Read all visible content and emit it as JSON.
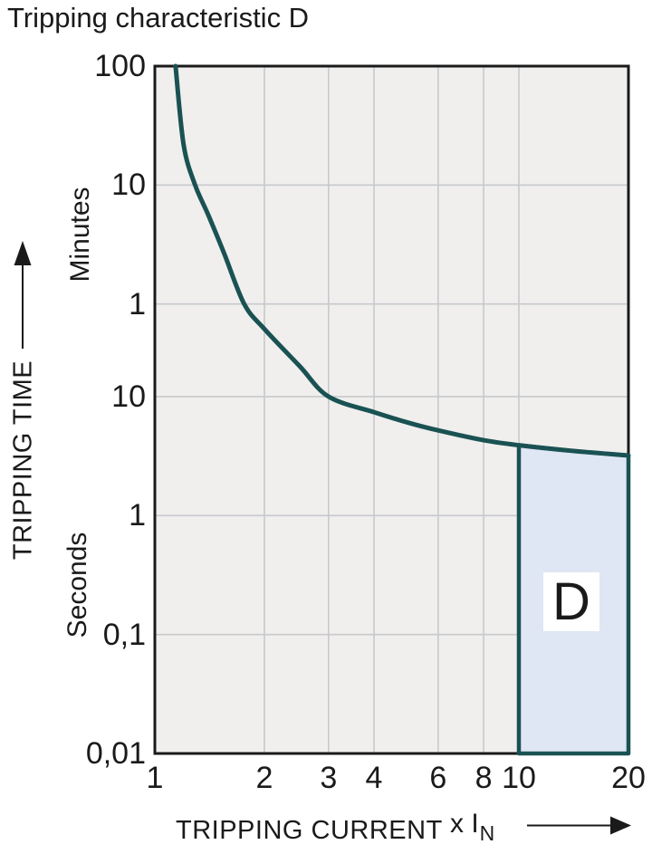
{
  "title": "Tripping characteristic D",
  "colors": {
    "curve": "#1a5253",
    "region_fill": "#dfe6f4",
    "plot_background": "#f0efed",
    "gridline": "#c7c9cd",
    "plot_border": "#1a1a1a",
    "text": "#1a1a1a",
    "page_background": "#ffffff"
  },
  "y_axis": {
    "title": "TRIPPING TIME",
    "unit_top": "Minutes",
    "unit_bottom": "Seconds"
  },
  "x_axis": {
    "title": "TRIPPING CURRENT",
    "multiplier": "x I",
    "multiplier_sub": "N"
  },
  "region_label": "D",
  "chart_data": {
    "type": "line",
    "title": "Tripping characteristic D",
    "xlabel": "TRIPPING CURRENT x IN",
    "ylabel": "TRIPPING TIME",
    "x_scale": "log",
    "y_scale": "log",
    "xlim": [
      1,
      20
    ],
    "ylim_seconds": [
      0.01,
      6000
    ],
    "grid": true,
    "x_ticks": [
      {
        "label": "1",
        "value": 1
      },
      {
        "label": "2",
        "value": 2
      },
      {
        "label": "3",
        "value": 3
      },
      {
        "label": "4",
        "value": 4
      },
      {
        "label": "6",
        "value": 6
      },
      {
        "label": "8",
        "value": 8
      },
      {
        "label": "10",
        "value": 10
      },
      {
        "label": "20",
        "value": 20
      }
    ],
    "y_ticks": [
      {
        "label": "100",
        "unit": "minutes",
        "seconds": 6000
      },
      {
        "label": "10",
        "unit": "minutes",
        "seconds": 600
      },
      {
        "label": "1",
        "unit": "minutes",
        "seconds": 60
      },
      {
        "label": "10",
        "unit": "seconds",
        "seconds": 10
      },
      {
        "label": "1",
        "unit": "seconds",
        "seconds": 1
      },
      {
        "label": "0,1",
        "unit": "seconds",
        "seconds": 0.1
      },
      {
        "label": "0,01",
        "unit": "seconds",
        "seconds": 0.01
      }
    ],
    "grid_x_values": [
      2,
      3,
      4,
      6,
      8,
      10
    ],
    "grid_y_seconds": [
      600,
      60,
      10,
      1,
      0.1
    ],
    "series": [
      {
        "name": "thermal tripping curve",
        "x_multiple_of_In": [
          1.14,
          1.2,
          1.29,
          1.4,
          1.55,
          1.76,
          2,
          2.5,
          3,
          4,
          5,
          6,
          8,
          10,
          14,
          20
        ],
        "time_seconds": [
          6000,
          1300,
          600,
          340,
          160,
          60,
          37,
          18,
          10,
          7.4,
          6.0,
          5.2,
          4.3,
          3.9,
          3.5,
          3.2
        ]
      }
    ],
    "region": {
      "label": "D",
      "x_range": [
        10,
        20
      ],
      "time_bottom_seconds": 0.01,
      "bounded_above_by": "curve"
    }
  }
}
